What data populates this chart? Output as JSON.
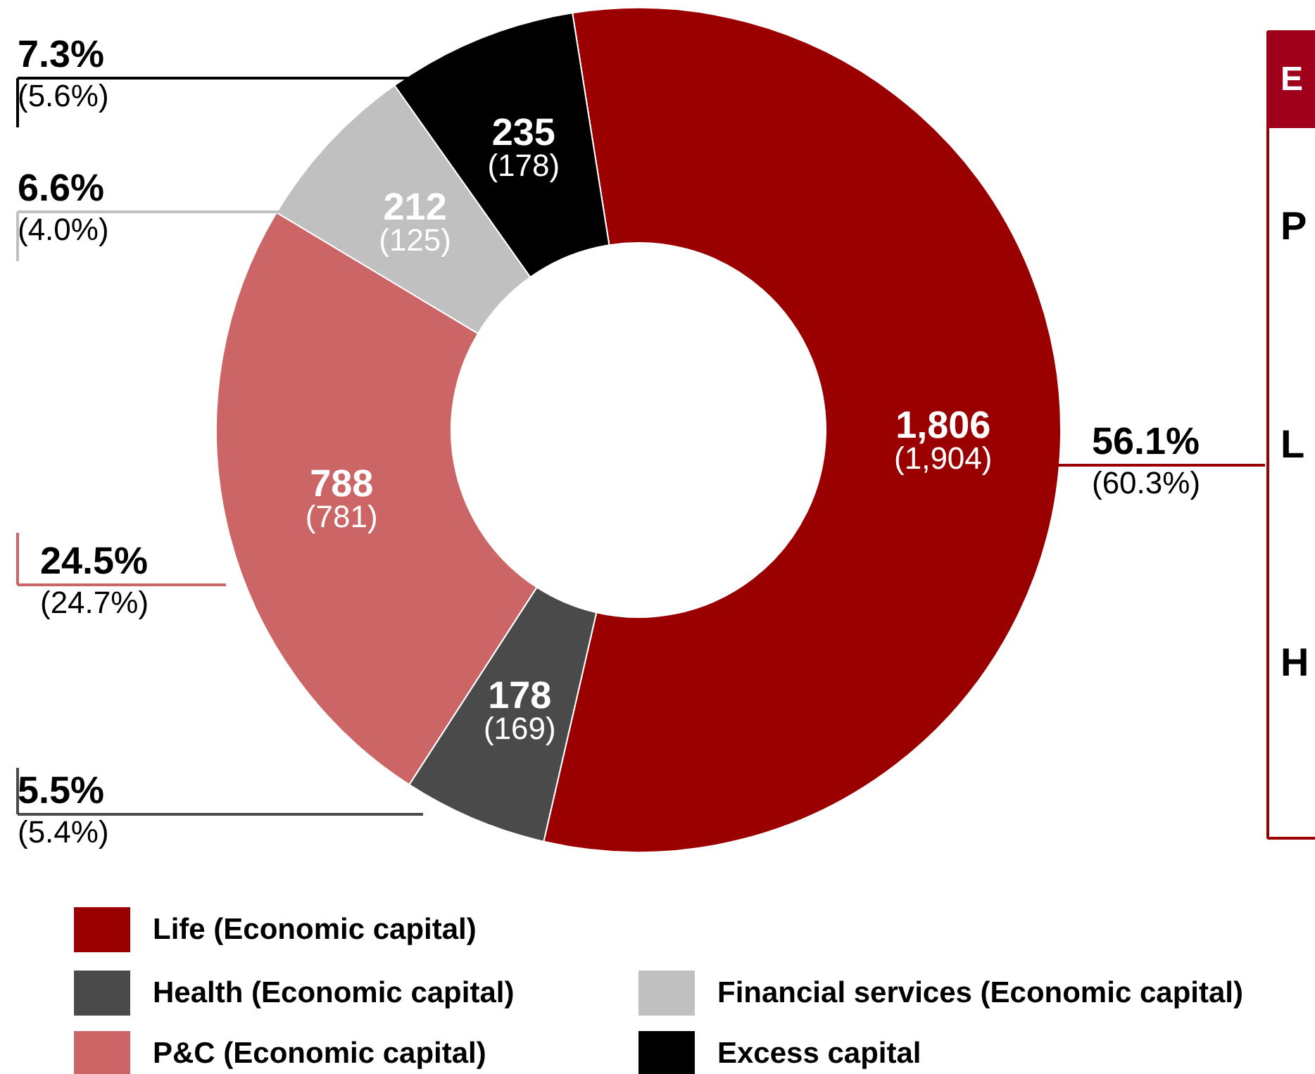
{
  "chart_data": {
    "type": "donut",
    "categories": [
      "Life (Economic capital)",
      "Health (Economic capital)",
      "P&C (Economic capital)",
      "Financial services (Economic capital)",
      "Excess capital"
    ],
    "values": [
      1806,
      178,
      788,
      212,
      235
    ],
    "colors": [
      "#9b0000",
      "#4a4a4a",
      "#cc6666",
      "#c0c0c0",
      "#000000"
    ],
    "value_labels": [
      "1,806\n(1,904)",
      "178\n(169)",
      "788\n(781)",
      "212\n(125)",
      "235\n(178)"
    ],
    "annotations": [
      {
        "text": "56.1%\n(60.3%)",
        "x": "Life (Economic capital)"
      },
      {
        "text": "5.5%\n(5.4%)",
        "x": "Health (Economic capital)"
      },
      {
        "text": "24.5%\n(24.7%)",
        "x": "P&C (Economic capital)"
      },
      {
        "text": "6.6%\n(4.0%)",
        "x": "Financial services (Economic capital)"
      },
      {
        "text": "7.3%\n(5.6%)",
        "x": "Excess capital"
      },
      "E",
      "P",
      "L",
      "H"
    ],
    "legend": "bottom"
  }
}
